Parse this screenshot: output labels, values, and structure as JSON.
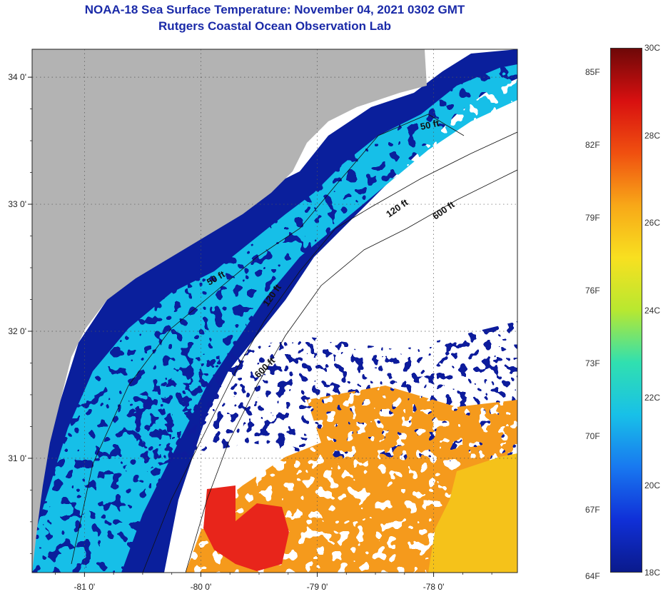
{
  "title": {
    "line1": "NOAA-18 Sea Surface Temperature:  November 04, 2021 0302 GMT",
    "line2": "Rutgers Coastal Ocean Observation Lab"
  },
  "map": {
    "lon_range": [
      -81.45,
      -77.28
    ],
    "lat_range": [
      30.1,
      34.22
    ],
    "lon_ticks": [
      {
        "value": -81,
        "label": "-81 0'"
      },
      {
        "value": -80,
        "label": "-80 0'"
      },
      {
        "value": -79,
        "label": "-79 0'"
      },
      {
        "value": -78,
        "label": "-78 0'"
      }
    ],
    "lat_ticks": [
      {
        "value": 34,
        "label": "34 0'"
      },
      {
        "value": 33,
        "label": "33 0'"
      },
      {
        "value": 32,
        "label": "32 0'"
      },
      {
        "value": 31,
        "label": "31 0'"
      }
    ],
    "isobath_labels": [
      {
        "id": "50-ft-north",
        "text": "50 ft"
      },
      {
        "id": "120-ft-north",
        "text": "120 ft"
      },
      {
        "id": "600-ft-north",
        "text": "600 ft"
      },
      {
        "id": "50-ft-south",
        "text": "50 ft"
      },
      {
        "id": "120-ft-south",
        "text": "120 ft"
      },
      {
        "id": "600-ft-south",
        "text": "600 ft"
      }
    ],
    "colors": {
      "land": "#b3b3b3",
      "cloud": "#ffffff",
      "coast_deep_blue": "#0a1f9c",
      "cyan_water": "#18bfe8",
      "warm_orange": "#f59a1f",
      "hot_red": "#e8251b",
      "yellow": "#f5c21a"
    }
  },
  "colorbar": {
    "celsius_range": [
      18,
      30
    ],
    "fahrenheit_labels": [
      {
        "value": 85,
        "label": "85F"
      },
      {
        "value": 82,
        "label": "82F"
      },
      {
        "value": 79,
        "label": "79F"
      },
      {
        "value": 76,
        "label": "76F"
      },
      {
        "value": 73,
        "label": "73F"
      },
      {
        "value": 70,
        "label": "70F"
      },
      {
        "value": 67,
        "label": "67F"
      },
      {
        "value": 64,
        "label": "64F"
      }
    ],
    "celsius_labels": [
      {
        "value": 30,
        "label": "30C"
      },
      {
        "value": 28,
        "label": "28C"
      },
      {
        "value": 26,
        "label": "26C"
      },
      {
        "value": 24,
        "label": "24C"
      },
      {
        "value": 22,
        "label": "22C"
      },
      {
        "value": 20,
        "label": "20C"
      },
      {
        "value": 18,
        "label": "18C"
      }
    ],
    "stops": [
      "#0a1a8c",
      "#1030d8",
      "#1878f0",
      "#18c0e8",
      "#30e0b0",
      "#b8e830",
      "#f8e020",
      "#f8a818",
      "#f05010",
      "#d81010",
      "#6e0808"
    ]
  }
}
